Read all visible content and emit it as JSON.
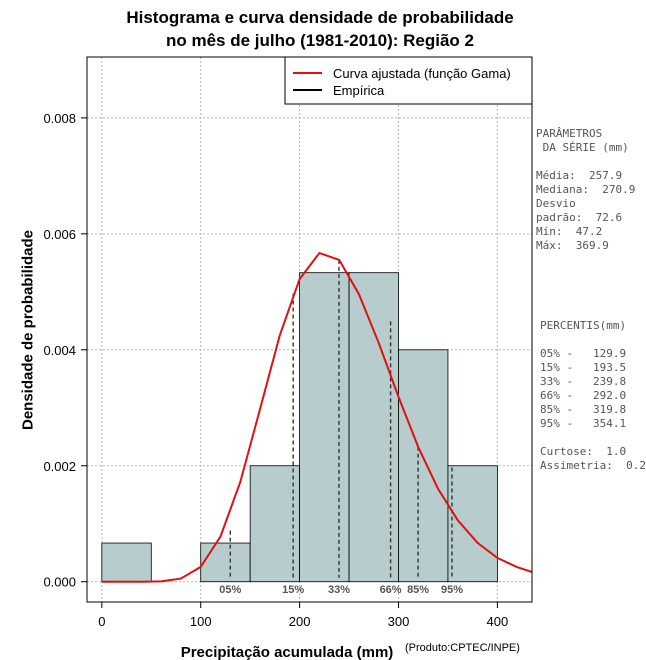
{
  "title": {
    "line1": "Histograma e curva densidade de probabilidade",
    "line2": "no mês de julho (1981-2010): Região 2"
  },
  "chart_data": {
    "type": "bar",
    "title": "Histograma e curva densidade de probabilidade no mês de julho (1981-2010): Região 2",
    "xlabel": "Precipitação acumulada (mm)",
    "ylabel": "Densidade de probabilidade",
    "credit": "(Produto:CPTEC/INPE)",
    "xlim": [
      -15,
      435
    ],
    "ylim": [
      -0.00035,
      0.00905
    ],
    "xticks": [
      0,
      100,
      200,
      300,
      400
    ],
    "xtick_labels": [
      "0",
      "100",
      "200",
      "300",
      "400"
    ],
    "yticks": [
      0,
      0.002,
      0.004,
      0.006,
      0.008
    ],
    "ytick_labels": [
      "0.000",
      "0.002",
      "0.004",
      "0.006",
      "0.008"
    ],
    "grid": true,
    "histogram": {
      "bins": [
        [
          0,
          50
        ],
        [
          50,
          100
        ],
        [
          100,
          150
        ],
        [
          150,
          200
        ],
        [
          200,
          250
        ],
        [
          250,
          300
        ],
        [
          300,
          350
        ],
        [
          350,
          400
        ]
      ],
      "density": [
        0.000667,
        0,
        0.000667,
        0.002,
        0.00533,
        0.00533,
        0.004,
        0.002
      ],
      "color": "#b7cdcd"
    },
    "gamma_curve": {
      "name": "Curva ajustada (função Gama)",
      "color": "#e01010",
      "x": [
        0,
        20,
        40,
        60,
        80,
        100,
        120,
        140,
        160,
        180,
        200,
        220,
        240,
        260,
        280,
        300,
        320,
        340,
        360,
        380,
        400,
        420,
        435
      ],
      "y": [
        0,
        2e-07,
        2e-07,
        5.8e-06,
        5.31e-05,
        0.000255,
        0.000779,
        0.00172,
        0.00298,
        0.00425,
        0.00522,
        0.00567,
        0.00555,
        0.00496,
        0.00412,
        0.00319,
        0.00232,
        0.0016,
        0.00106,
        0.00067,
        0.00041,
        0.00025,
        0.00017
      ]
    },
    "empirical": {
      "name": "Empírica",
      "color": "#000000"
    },
    "legend_position": "top-right",
    "percentiles": [
      {
        "label": "05%",
        "x": 129.9,
        "y": 0.00088
      },
      {
        "label": "15%",
        "x": 193.5,
        "y": 0.00497
      },
      {
        "label": "33%",
        "x": 239.8,
        "y": 0.00555
      },
      {
        "label": "66%",
        "x": 292.0,
        "y": 0.00449
      },
      {
        "label": "85%",
        "x": 319.8,
        "y": 0.00233
      },
      {
        "label": "95%",
        "x": 354.1,
        "y": 0.00197
      }
    ]
  },
  "side_panel": {
    "params_text": "PARÂMETROS\n DA SÉRIE (mm)\n\nMédia:  257.9\nMediana:  270.9\nDesvio\npadrão:  72.6\nMín:  47.2\nMáx:  369.9",
    "percentis_text": "PERCENTIS(mm)\n\n05% -   129.9\n15% -   193.5\n33% -   239.8\n66% -   292.0\n85% -   319.8\n95% -   354.1\n\nCurtose:  1.0\nAssimetria:  0.2"
  }
}
